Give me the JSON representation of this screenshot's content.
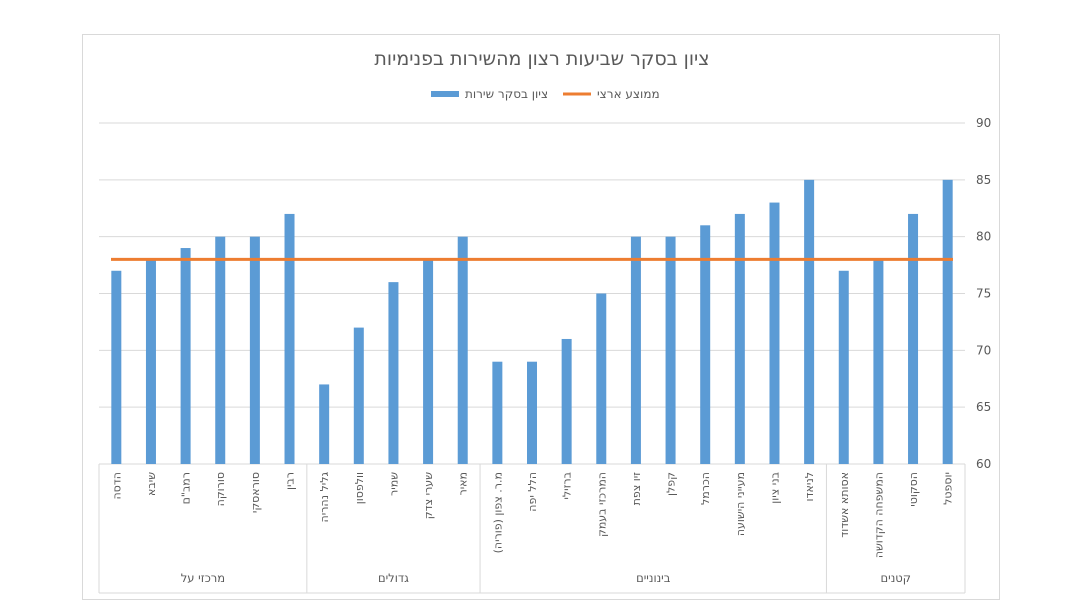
{
  "chart_data": {
    "type": "bar",
    "title": "ציון בסקר שביעות רצון מהשירות בפנימיות",
    "ylim": [
      60,
      90
    ],
    "yticks": [
      60,
      65,
      70,
      75,
      80,
      85,
      90
    ],
    "grid": true,
    "legend_position": "top",
    "categories": [
      "הדסה",
      "שיבא",
      "רמב\"ם",
      "סורוקה",
      "סוראסקי",
      "רבין",
      "גליל נהריה",
      "וולפסון",
      "שמיר",
      "שערי צדק",
      "מאיר",
      "מ.ר. צפון (פוריה)",
      "הלל יפה",
      "ברזילי",
      "המרכזי בעמק",
      "זיו צפת",
      "קפלן",
      "הכרמל",
      "מעייני הישועה",
      "בני ציון",
      "לניאדו",
      "אסותא אשדוד",
      "המשפחה הקדושה",
      "הסקוטי",
      "יוספטל"
    ],
    "groups": [
      {
        "label": "מרכזי על",
        "count": 6
      },
      {
        "label": "גדולים",
        "count": 5
      },
      {
        "label": "בינוניים",
        "count": 10
      },
      {
        "label": "קטנים",
        "count": 4
      }
    ],
    "series": [
      {
        "name": "ציון בסקר שירות",
        "kind": "bar",
        "color": "#5b9bd5",
        "values": [
          77,
          78,
          79,
          80,
          80,
          82,
          67,
          72,
          76,
          78,
          80,
          69,
          69,
          71,
          75,
          80,
          80,
          81,
          82,
          83,
          85,
          77,
          78,
          82,
          85
        ]
      },
      {
        "name": "ממוצע ארצי",
        "kind": "line",
        "color": "#ed7d31",
        "value": 78
      }
    ]
  }
}
